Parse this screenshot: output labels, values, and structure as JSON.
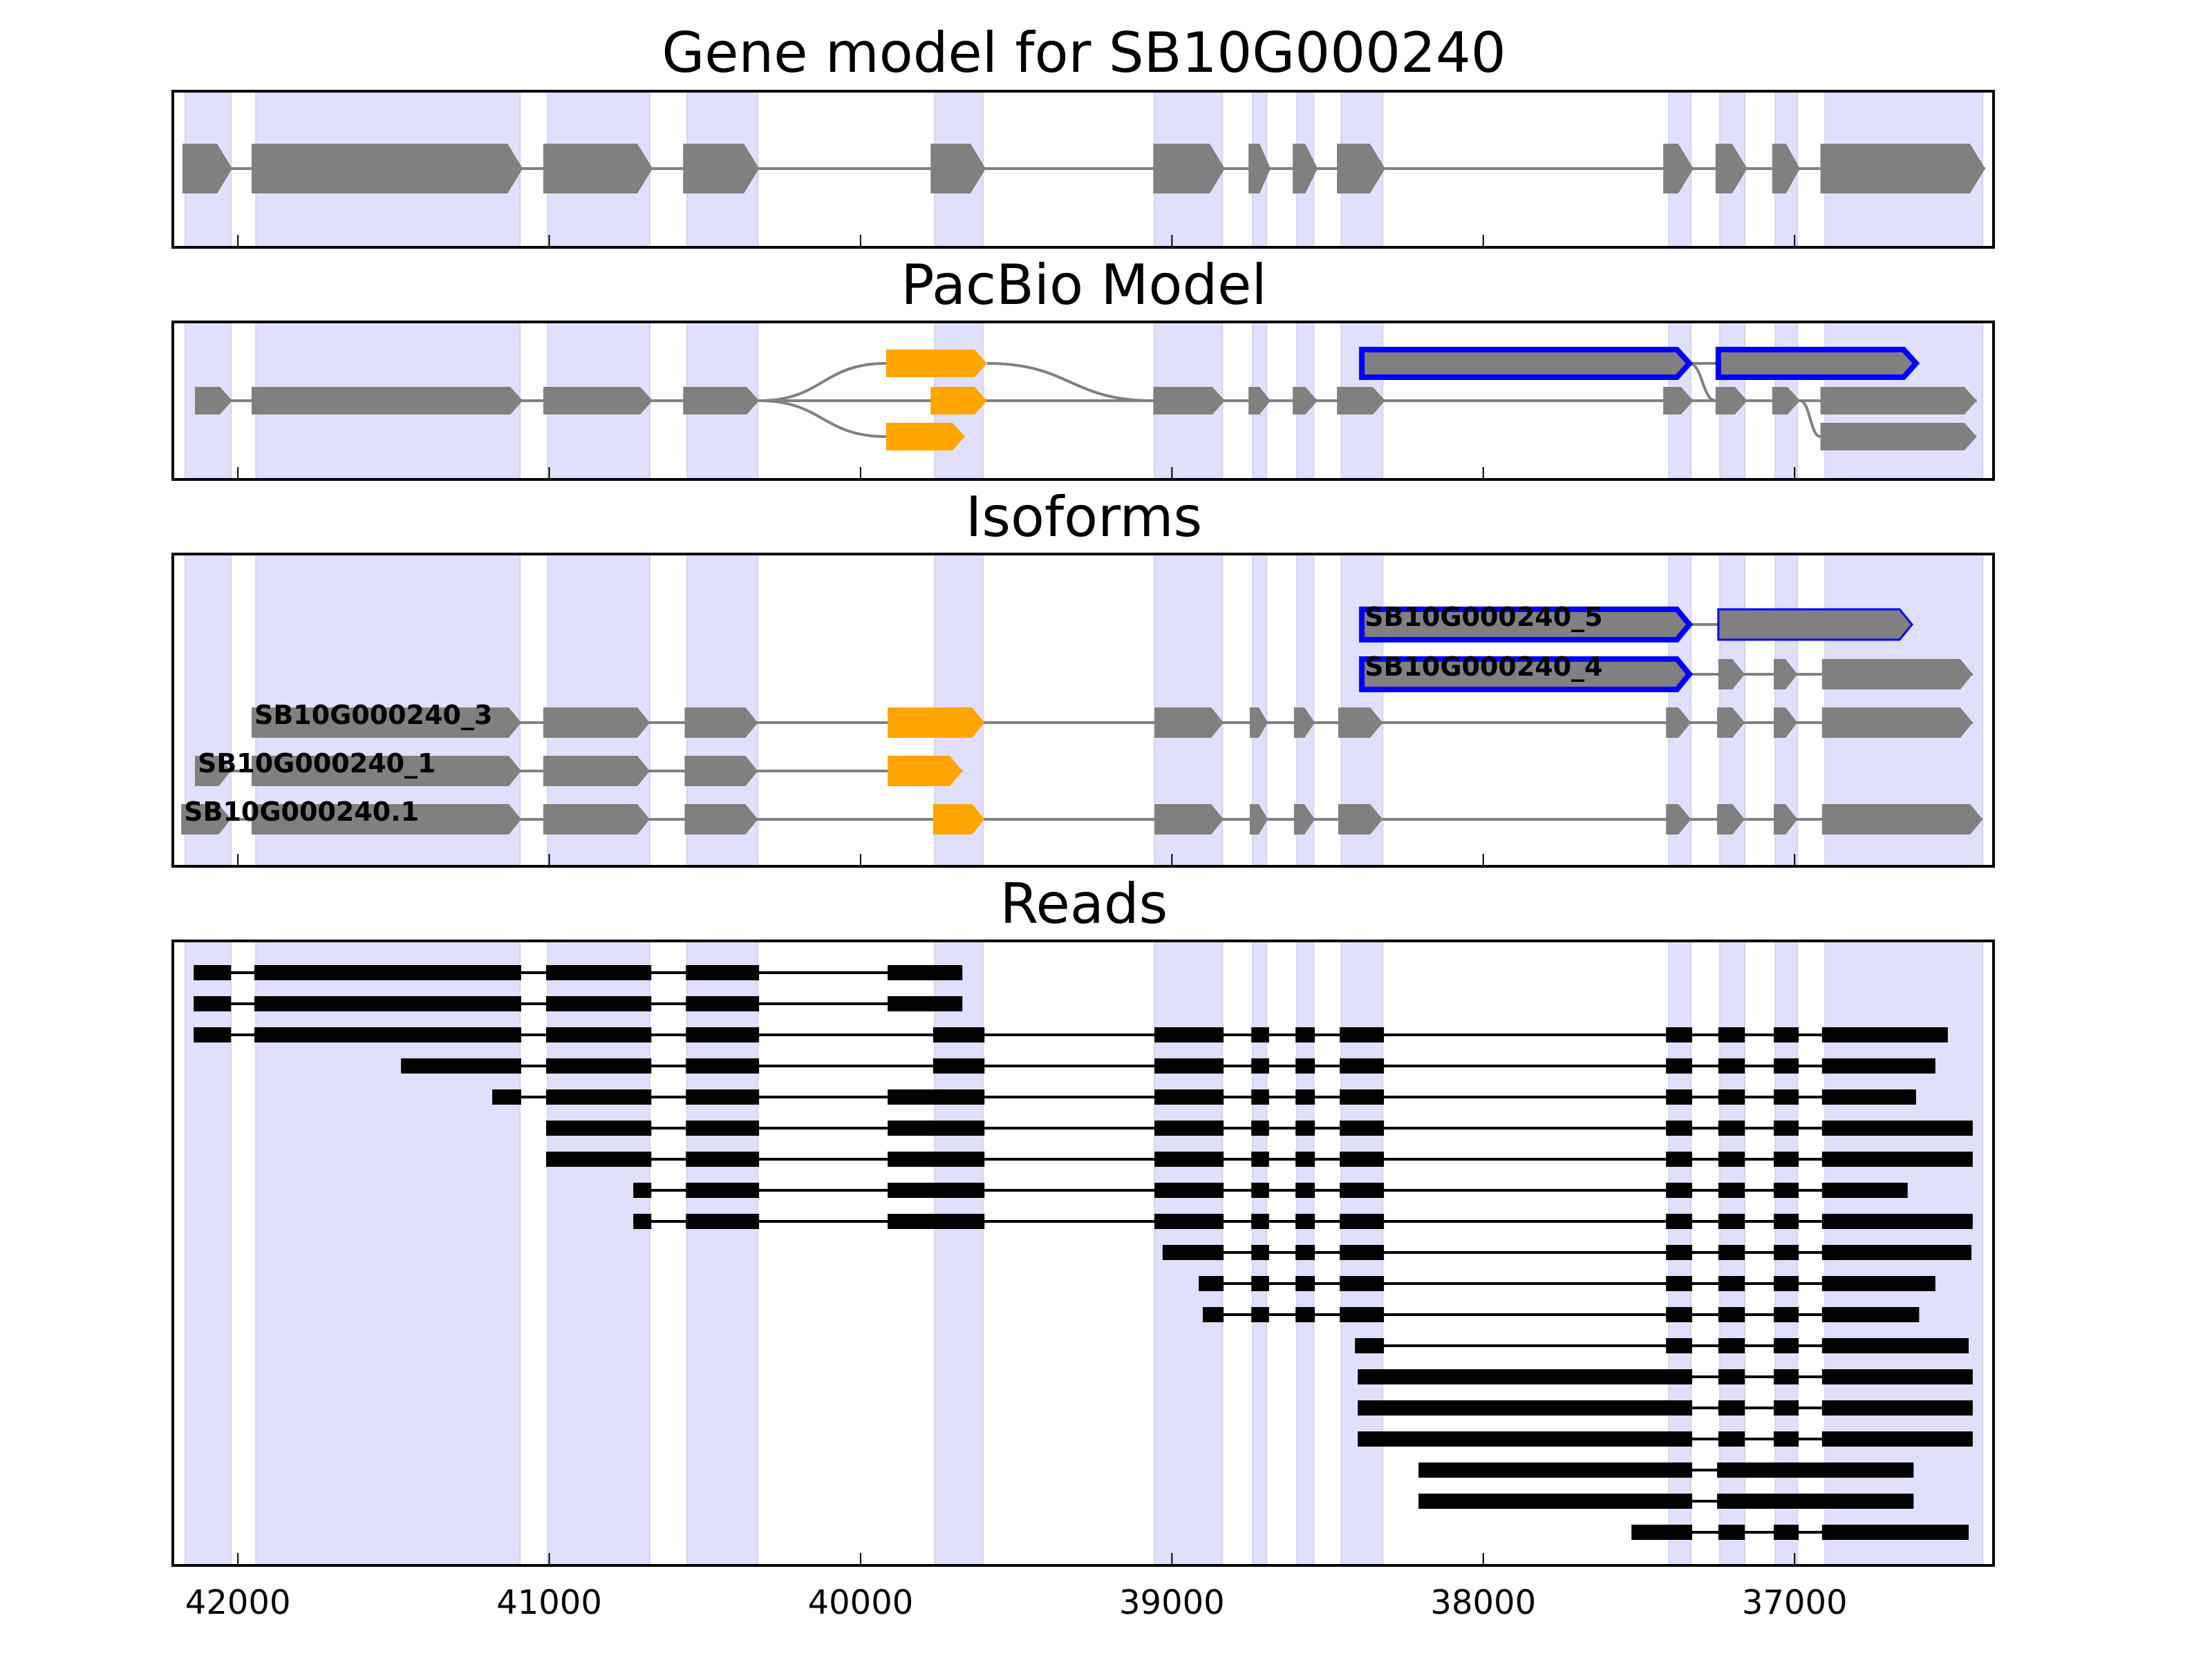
{
  "chart_data": {
    "type": "gene-track",
    "xlim": [
      42209,
      36361
    ],
    "xticks": [
      42000,
      41000,
      40000,
      39000,
      38000,
      37000
    ],
    "xtick_labels": [
      "42000",
      "41000",
      "40000",
      "39000",
      "38000",
      "37000"
    ],
    "colors": {
      "exon": "#808080",
      "alt_exon": "#FFA500",
      "outline": "#0000FF",
      "band": "#E0E0FC",
      "read": "#000000",
      "intron": "#808080"
    },
    "bands": [
      [
        42169,
        42022
      ],
      [
        41942,
        41094
      ],
      [
        41005,
        40677
      ],
      [
        40557,
        40330
      ],
      [
        39762,
        39607
      ],
      [
        39056,
        38838
      ],
      [
        38741,
        38696
      ],
      [
        38599,
        38545
      ],
      [
        38456,
        38323
      ],
      [
        37404,
        37333
      ],
      [
        37240,
        37160
      ],
      [
        37062,
        36991
      ],
      [
        36902,
        36396
      ]
    ],
    "panels": [
      {
        "title": "Gene model for SB10G000240",
        "rows": [
          {
            "line": [
              42178,
              36388
            ],
            "features": [
              [
                42178,
                42018
              ],
              [
                41956,
                41085
              ],
              [
                41019,
                40668
              ],
              [
                40570,
                40326
              ],
              [
                39775,
                39598
              ],
              [
                39060,
                38830
              ],
              [
                38754,
                38683
              ],
              [
                38612,
                38532
              ],
              [
                38470,
                38315
              ],
              [
                37422,
                37325
              ],
              [
                37254,
                37152
              ],
              [
                37072,
                36983
              ],
              [
                36917,
                36388
              ]
            ]
          }
        ]
      },
      {
        "title": "PacBio Model",
        "rows": [
          {
            "line": [
              37338,
              37245
            ],
            "features": [
              {
                "s": 39918,
                "e": 39594,
                "c": "alt"
              },
              {
                "s": 38390,
                "e": 37338,
                "c": "outline"
              },
              {
                "s": 37245,
                "e": 36610,
                "c": "outline"
              }
            ]
          },
          {
            "line": [
              42138,
              36415
            ],
            "features": [
              [
                42138,
                42018
              ],
              [
                41956,
                41085
              ],
              [
                41019,
                40668
              ],
              [
                40570,
                40326
              ],
              {
                "s": 39775,
                "e": 39594,
                "c": "alt"
              },
              [
                39060,
                38830
              ],
              [
                38754,
                38683
              ],
              [
                38612,
                38532
              ],
              [
                38470,
                38315
              ],
              [
                37422,
                37325
              ],
              [
                37254,
                37152
              ],
              [
                37072,
                36983
              ],
              [
                36917,
                36415
              ]
            ]
          },
          {
            "features": [
              {
                "s": 39918,
                "e": 39665,
                "c": "alt"
              },
              [
                36917,
                36415
              ]
            ]
          }
        ],
        "connectors": [
          {
            "from": [
              40326,
              1
            ],
            "to": [
              39918,
              0
            ]
          },
          {
            "from": [
              40326,
              1
            ],
            "to": [
              39918,
              2
            ]
          },
          {
            "from": [
              39594,
              0
            ],
            "to": [
              39060,
              1
            ]
          },
          {
            "from": [
              37338,
              0
            ],
            "to": [
              37254,
              1
            ]
          },
          {
            "from": [
              36983,
              1
            ],
            "to": [
              36917,
              2
            ]
          }
        ]
      },
      {
        "title": "Isoforms",
        "rows": [
          {
            "label": "SB10G000240_5",
            "line": [
              37338,
              37245
            ],
            "features": [
              {
                "s": 38390,
                "e": 37338,
                "c": "outline"
              },
              {
                "s": 37245,
                "e": 36623,
                "c": "thinoutline"
              }
            ]
          },
          {
            "label": "SB10G000240_4",
            "line": [
              37338,
              36428
            ],
            "features": [
              {
                "s": 38390,
                "e": 37338,
                "c": "outline"
              },
              [
                37245,
                37160
              ],
              [
                37067,
                36991
              ],
              [
                36912,
                36428
              ]
            ]
          },
          {
            "label": "SB10G000240_3",
            "line": [
              41956,
              36428
            ],
            "features": [
              [
                41956,
                41090
              ],
              [
                41019,
                40677
              ],
              [
                40565,
                40330
              ],
              {
                "s": 39913,
                "e": 39602,
                "c": "alt"
              },
              [
                39056,
                38834
              ],
              [
                38750,
                38692
              ],
              [
                38608,
                38541
              ],
              [
                38466,
                38323
              ],
              [
                37413,
                37333
              ],
              [
                37249,
                37160
              ],
              [
                37067,
                36991
              ],
              [
                36912,
                36428
              ]
            ]
          },
          {
            "label": "SB10G000240_1",
            "line": [
              42138,
              39673
            ],
            "features": [
              [
                42138,
                42022
              ],
              [
                41956,
                41090
              ],
              [
                41019,
                40677
              ],
              [
                40565,
                40330
              ],
              {
                "s": 39913,
                "e": 39673,
                "c": "alt"
              }
            ]
          },
          {
            "label": "SB10G000240.1",
            "line": [
              42182,
              36396
            ],
            "features": [
              [
                42182,
                42022
              ],
              [
                41956,
                41090
              ],
              [
                41019,
                40677
              ],
              [
                40565,
                40330
              ],
              {
                "s": 39767,
                "e": 39602,
                "c": "alt"
              },
              [
                39056,
                38834
              ],
              [
                38750,
                38692
              ],
              [
                38608,
                38541
              ],
              [
                38466,
                38323
              ],
              [
                37413,
                37333
              ],
              [
                37249,
                37160
              ],
              [
                37067,
                36991
              ],
              [
                36912,
                36396
              ]
            ]
          }
        ]
      },
      {
        "title": "Reads",
        "reads": [
          [
            [
              42142,
              42022
            ],
            [
              41947,
              41090
            ],
            [
              41010,
              40672
            ],
            [
              40561,
              40326
            ],
            [
              39913,
              39673
            ]
          ],
          [
            [
              42142,
              42022
            ],
            [
              41947,
              41090
            ],
            [
              41010,
              40672
            ],
            [
              40561,
              40326
            ],
            [
              39913,
              39673
            ]
          ],
          [
            [
              42142,
              42022
            ],
            [
              41947,
              41090
            ],
            [
              41010,
              40672
            ],
            [
              40561,
              40326
            ],
            [
              39767,
              39602
            ],
            [
              39056,
              38834
            ],
            [
              38745,
              38688
            ],
            [
              38603,
              38541
            ],
            [
              38461,
              38319
            ],
            [
              37413,
              37329
            ],
            [
              37245,
              37160
            ],
            [
              37067,
              36987
            ],
            [
              36912,
              36508
            ]
          ],
          [
            [
              41476,
              41090
            ],
            [
              41010,
              40672
            ],
            [
              40561,
              40326
            ],
            [
              39767,
              39602
            ],
            [
              39056,
              38834
            ],
            [
              38745,
              38688
            ],
            [
              38603,
              38541
            ],
            [
              38461,
              38319
            ],
            [
              37413,
              37329
            ],
            [
              37245,
              37160
            ],
            [
              37067,
              36987
            ],
            [
              36912,
              36548
            ]
          ],
          [
            [
              41183,
              41090
            ],
            [
              41010,
              40672
            ],
            [
              40561,
              40326
            ],
            [
              39913,
              39602
            ],
            [
              39056,
              38834
            ],
            [
              38745,
              38688
            ],
            [
              38603,
              38541
            ],
            [
              38461,
              38319
            ],
            [
              37413,
              37329
            ],
            [
              37245,
              37160
            ],
            [
              37067,
              36987
            ],
            [
              36912,
              36610
            ]
          ],
          [
            [
              41010,
              40672
            ],
            [
              40561,
              40326
            ],
            [
              39913,
              39602
            ],
            [
              39056,
              38834
            ],
            [
              38745,
              38688
            ],
            [
              38603,
              38541
            ],
            [
              38461,
              38319
            ],
            [
              37413,
              37329
            ],
            [
              37245,
              37160
            ],
            [
              37067,
              36987
            ],
            [
              36912,
              36428
            ]
          ],
          [
            [
              41010,
              40672
            ],
            [
              40561,
              40326
            ],
            [
              39913,
              39602
            ],
            [
              39056,
              38834
            ],
            [
              38745,
              38688
            ],
            [
              38603,
              38541
            ],
            [
              38461,
              38319
            ],
            [
              37413,
              37329
            ],
            [
              37245,
              37160
            ],
            [
              37067,
              36987
            ],
            [
              36912,
              36428
            ]
          ],
          [
            [
              40730,
              40672
            ],
            [
              40561,
              40326
            ],
            [
              39913,
              39602
            ],
            [
              39056,
              38834
            ],
            [
              38745,
              38688
            ],
            [
              38603,
              38541
            ],
            [
              38461,
              38319
            ],
            [
              37413,
              37329
            ],
            [
              37245,
              37160
            ],
            [
              37067,
              36987
            ],
            [
              36912,
              36637
            ]
          ],
          [
            [
              40730,
              40672
            ],
            [
              40561,
              40326
            ],
            [
              39913,
              39602
            ],
            [
              39056,
              38834
            ],
            [
              38745,
              38688
            ],
            [
              38603,
              38541
            ],
            [
              38461,
              38319
            ],
            [
              37413,
              37329
            ],
            [
              37245,
              37160
            ],
            [
              37067,
              36987
            ],
            [
              36912,
              36428
            ]
          ],
          [
            [
              39030,
              38834
            ],
            [
              38745,
              38688
            ],
            [
              38603,
              38541
            ],
            [
              38461,
              38319
            ],
            [
              37413,
              37329
            ],
            [
              37245,
              37160
            ],
            [
              37067,
              36987
            ],
            [
              36912,
              36432
            ]
          ],
          [
            [
              38914,
              38834
            ],
            [
              38745,
              38688
            ],
            [
              38603,
              38541
            ],
            [
              38461,
              38319
            ],
            [
              37413,
              37329
            ],
            [
              37245,
              37160
            ],
            [
              37067,
              36987
            ],
            [
              36912,
              36548
            ]
          ],
          [
            [
              38901,
              38834
            ],
            [
              38745,
              38688
            ],
            [
              38603,
              38541
            ],
            [
              38461,
              38319
            ],
            [
              37413,
              37329
            ],
            [
              37245,
              37160
            ],
            [
              37067,
              36987
            ],
            [
              36912,
              36600
            ]
          ],
          [
            [
              38412,
              38319
            ],
            [
              37413,
              37329
            ],
            [
              37245,
              37160
            ],
            [
              37067,
              36987
            ],
            [
              36912,
              36441
            ]
          ],
          [
            [
              38403,
              37329
            ],
            [
              37245,
              37160
            ],
            [
              37067,
              36987
            ],
            [
              36912,
              36428
            ]
          ],
          [
            [
              38403,
              37329
            ],
            [
              37245,
              37160
            ],
            [
              37067,
              36987
            ],
            [
              36912,
              36428
            ]
          ],
          [
            [
              38403,
              37329
            ],
            [
              37245,
              37160
            ],
            [
              37067,
              36987
            ],
            [
              36912,
              36428
            ]
          ],
          [
            [
              38208,
              37329
            ],
            [
              37249,
              36618
            ]
          ],
          [
            [
              38208,
              37329
            ],
            [
              37249,
              36618
            ]
          ],
          [
            [
              37524,
              37329
            ],
            [
              37245,
              37160
            ],
            [
              37067,
              36987
            ],
            [
              36912,
              36441
            ]
          ]
        ]
      }
    ]
  }
}
